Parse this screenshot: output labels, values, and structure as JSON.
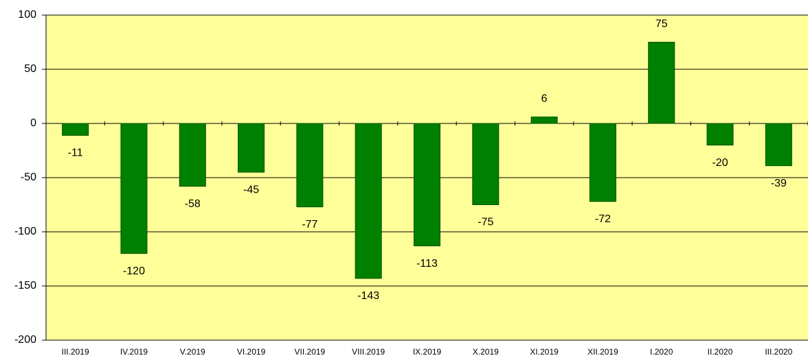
{
  "chart_data": {
    "type": "bar",
    "categories": [
      "III.2019",
      "IV.2019",
      "V.2019",
      "VI.2019",
      "VII.2019",
      "VIII.2019",
      "IX.2019",
      "X.2019",
      "XI.2019",
      "XII.2019",
      "I.2020",
      "II.2020",
      "III.2020"
    ],
    "values": [
      -11,
      -120,
      -58,
      -45,
      -77,
      -143,
      -113,
      -75,
      6,
      -72,
      75,
      -20,
      -39
    ],
    "color": "#008000",
    "ylim": [
      -200,
      100
    ],
    "yticks": [
      -200,
      -150,
      -100,
      -50,
      0,
      50,
      100
    ],
    "grid": true
  }
}
